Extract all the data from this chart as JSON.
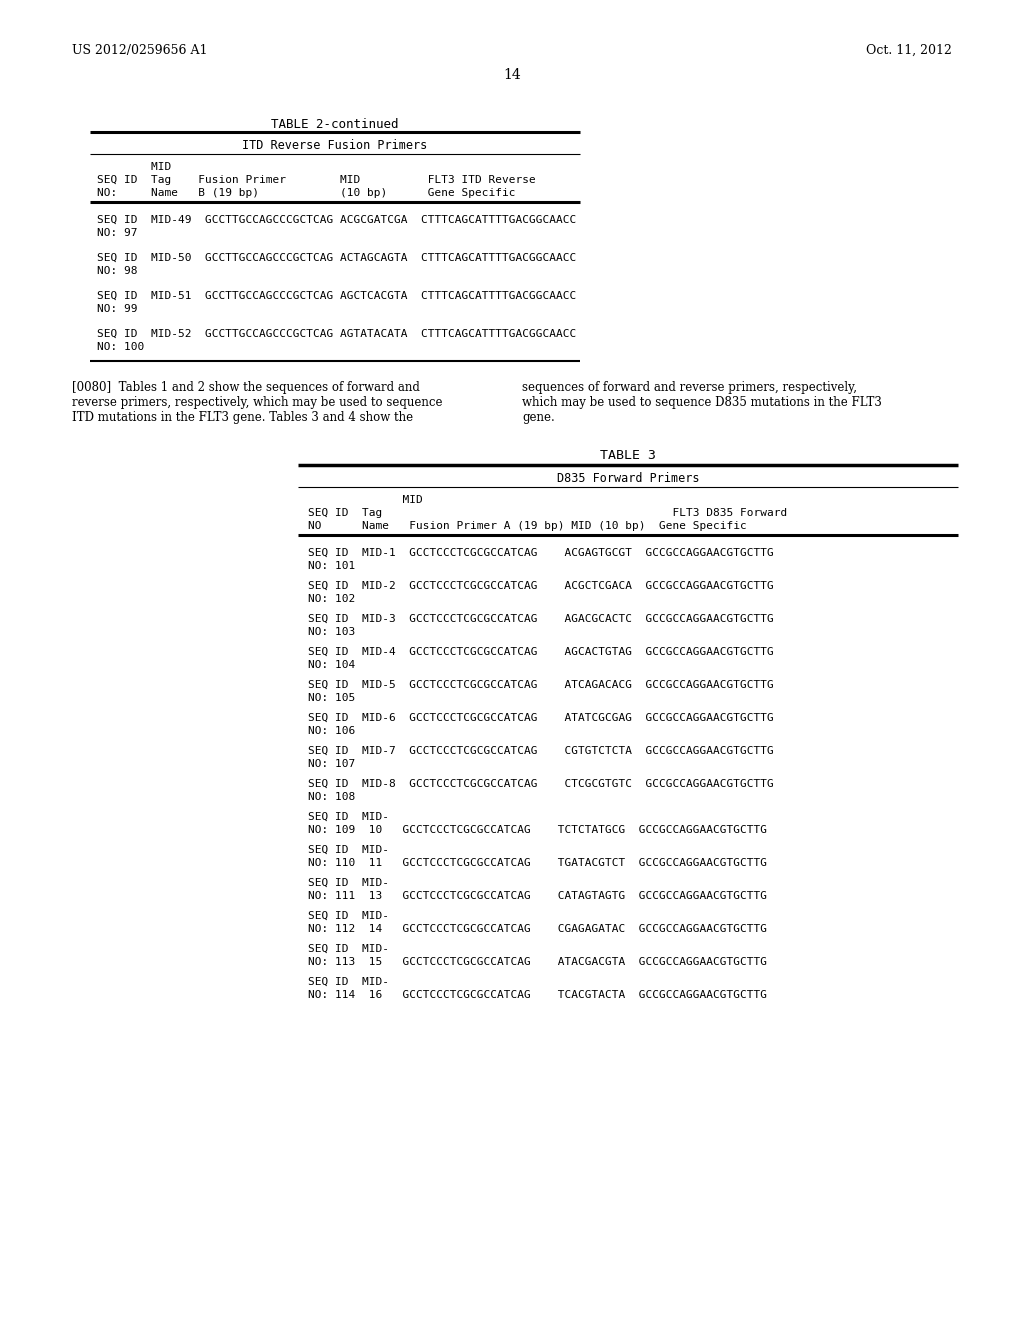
{
  "background_color": "#ffffff",
  "page_number": "14",
  "header_left": "US 2012/0259656 A1",
  "header_right": "Oct. 11, 2012",
  "table2_title": "TABLE 2-continued",
  "table2_subtitle": "ITD Reverse Fusion Primers",
  "table3_title": "TABLE 3",
  "table3_subtitle": "D835 Forward Primers",
  "paragraph_left": "[0080]  Tables 1 and 2 show the sequences of forward and\nreverse primers, respectively, which may be used to sequence\nITD mutations in the FLT3 gene. Tables 3 and 4 show the",
  "paragraph_right": "sequences of forward and reverse primers, respectively,\nwhich may be used to sequence D835 mutations in the FLT3\ngene.",
  "table2_rows": [
    [
      "SEQ ID  MID-49  GCCTTGCCAGCCCGCTCAG ACGCGATCGA  CTTTCAGCATTTTGACGGCAACC",
      "NO: 97"
    ],
    [
      "SEQ ID  MID-50  GCCTTGCCAGCCCGCTCAG ACTAGCAGTA  CTTTCAGCATTTTGACGGCAACC",
      "NO: 98"
    ],
    [
      "SEQ ID  MID-51  GCCTTGCCAGCCCGCTCAG AGCTCACGTA  CTTTCAGCATTTTGACGGCAACC",
      "NO: 99"
    ],
    [
      "SEQ ID  MID-52  GCCTTGCCAGCCCGCTCAG AGTATACATA  CTTTCAGCATTTTGACGGCAACC",
      "NO: 100"
    ]
  ],
  "table3_rows_normal": [
    [
      "SEQ ID  MID-1  GCCTCCCTCGCGCCATCAG    ACGAGTGCGT  GCCGCCAGGAACGTGCTTG",
      "NO: 101"
    ],
    [
      "SEQ ID  MID-2  GCCTCCCTCGCGCCATCAG    ACGCTCGACA  GCCGCCAGGAACGTGCTTG",
      "NO: 102"
    ],
    [
      "SEQ ID  MID-3  GCCTCCCTCGCGCCATCAG    AGACGCACTC  GCCGCCAGGAACGTGCTTG",
      "NO: 103"
    ],
    [
      "SEQ ID  MID-4  GCCTCCCTCGCGCCATCAG    AGCACTGTAG  GCCGCCAGGAACGTGCTTG",
      "NO: 104"
    ],
    [
      "SEQ ID  MID-5  GCCTCCCTCGCGCCATCAG    ATCAGACACG  GCCGCCAGGAACGTGCTTG",
      "NO: 105"
    ],
    [
      "SEQ ID  MID-6  GCCTCCCTCGCGCCATCAG    ATATCGCGAG  GCCGCCAGGAACGTGCTTG",
      "NO: 106"
    ],
    [
      "SEQ ID  MID-7  GCCTCCCTCGCGCCATCAG    CGTGTCTCTA  GCCGCCAGGAACGTGCTTG",
      "NO: 107"
    ],
    [
      "SEQ ID  MID-8  GCCTCCCTCGCGCCATCAG    CTCGCGTGTC  GCCGCCAGGAACGTGCTTG",
      "NO: 108"
    ]
  ],
  "table3_rows_split": [
    [
      "SEQ ID  MID-",
      "NO: 109  10   GCCTCCCTCGCGCCATCAG    TCTCTATGCG  GCCGCCAGGAACGTGCTTG"
    ],
    [
      "SEQ ID  MID-",
      "NO: 110  11   GCCTCCCTCGCGCCATCAG    TGATACGTCT  GCCGCCAGGAACGTGCTTG"
    ],
    [
      "SEQ ID  MID-",
      "NO: 111  13   GCCTCCCTCGCGCCATCAG    CATAGTAGTG  GCCGCCAGGAACGTGCTTG"
    ],
    [
      "SEQ ID  MID-",
      "NO: 112  14   GCCTCCCTCGCGCCATCAG    CGAGAGATAC  GCCGCCAGGAACGTGCTTG"
    ],
    [
      "SEQ ID  MID-",
      "NO: 113  15   GCCTCCCTCGCGCCATCAG    ATACGACGTA  GCCGCCAGGAACGTGCTTG"
    ],
    [
      "SEQ ID  MID-",
      "NO: 114  16   GCCTCCCTCGCGCCATCAG    TCACGTACTA  GCCGCCAGGAACGTGCTTG"
    ]
  ]
}
